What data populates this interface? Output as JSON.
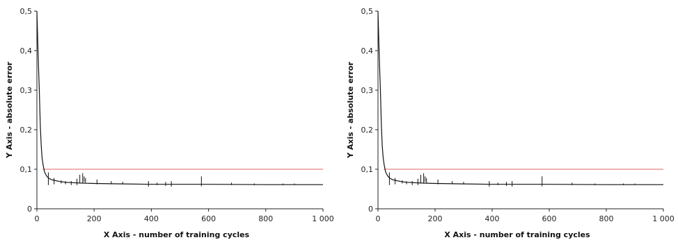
{
  "chart_data": [
    {
      "type": "line",
      "title": "",
      "xlabel": "X Axis - number of training cycles",
      "ylabel": "Y Axis - absolute error",
      "xlim": [
        0,
        1000
      ],
      "ylim": [
        0,
        0.5
      ],
      "x_ticks": [
        0,
        200,
        400,
        600,
        800,
        1000
      ],
      "x_tick_labels": [
        "0",
        "200",
        "400",
        "600",
        "800",
        "1 000"
      ],
      "y_ticks": [
        0,
        0.1,
        0.2,
        0.3,
        0.4,
        0.5
      ],
      "y_tick_labels": [
        "0",
        "0,1",
        "0,2",
        "0,3",
        "0,4",
        "0,5"
      ],
      "grid": false,
      "legend": "none",
      "series": [
        {
          "color": "#111111",
          "x": [
            0,
            2,
            4,
            6,
            8,
            10,
            12,
            15,
            18,
            22,
            26,
            30,
            35,
            40,
            50,
            60,
            80,
            100,
            150,
            200,
            300,
            400,
            600,
            800,
            1000
          ],
          "y": [
            0.5,
            0.45,
            0.4,
            0.35,
            0.31,
            0.26,
            0.21,
            0.16,
            0.13,
            0.11,
            0.095,
            0.088,
            0.082,
            0.078,
            0.074,
            0.072,
            0.069,
            0.067,
            0.065,
            0.064,
            0.063,
            0.062,
            0.062,
            0.061,
            0.061
          ]
        },
        {
          "color": "#e06666",
          "x": [
            20,
            1000
          ],
          "y": [
            0.1,
            0.1
          ]
        }
      ],
      "spikes": {
        "x": [
          40,
          60,
          85,
          100,
          120,
          140,
          150,
          160,
          165,
          170,
          210,
          260,
          300,
          390,
          420,
          450,
          470,
          575,
          680,
          760,
          860,
          900
        ],
        "y_low": [
          0.06,
          0.062,
          0.064,
          0.062,
          0.06,
          0.06,
          0.064,
          0.064,
          0.068,
          0.066,
          0.062,
          0.062,
          0.062,
          0.056,
          0.06,
          0.058,
          0.056,
          0.057,
          0.06,
          0.06,
          0.06,
          0.061
        ],
        "y_high": [
          0.092,
          0.078,
          0.072,
          0.07,
          0.07,
          0.076,
          0.086,
          0.09,
          0.082,
          0.078,
          0.074,
          0.07,
          0.068,
          0.07,
          0.066,
          0.068,
          0.07,
          0.082,
          0.066,
          0.064,
          0.064,
          0.064
        ]
      }
    },
    {
      "type": "line",
      "title": "",
      "xlabel": "X Axis - number of training cycles",
      "ylabel": "Y Axis - absolute error",
      "xlim": [
        0,
        1000
      ],
      "ylim": [
        0,
        0.5
      ],
      "x_ticks": [
        0,
        200,
        400,
        600,
        800,
        1000
      ],
      "x_tick_labels": [
        "0",
        "200",
        "400",
        "600",
        "800",
        "1 000"
      ],
      "y_ticks": [
        0,
        0.1,
        0.2,
        0.3,
        0.4,
        0.5
      ],
      "y_tick_labels": [
        "0",
        "0,1",
        "0,2",
        "0,3",
        "0,4",
        "0,5"
      ],
      "grid": false,
      "legend": "none",
      "series": [
        {
          "color": "#111111",
          "x": [
            0,
            2,
            4,
            6,
            8,
            10,
            12,
            15,
            18,
            22,
            26,
            30,
            35,
            40,
            50,
            60,
            80,
            100,
            150,
            200,
            300,
            400,
            600,
            800,
            1000
          ],
          "y": [
            0.5,
            0.45,
            0.4,
            0.35,
            0.31,
            0.26,
            0.21,
            0.16,
            0.13,
            0.11,
            0.095,
            0.088,
            0.082,
            0.078,
            0.074,
            0.072,
            0.069,
            0.067,
            0.065,
            0.064,
            0.063,
            0.062,
            0.062,
            0.061,
            0.061
          ]
        },
        {
          "color": "#e06666",
          "x": [
            20,
            1000
          ],
          "y": [
            0.1,
            0.1
          ]
        }
      ],
      "spikes": {
        "x": [
          40,
          60,
          85,
          100,
          120,
          140,
          150,
          160,
          165,
          170,
          210,
          260,
          300,
          390,
          420,
          450,
          470,
          575,
          680,
          760,
          860,
          900
        ],
        "y_low": [
          0.06,
          0.062,
          0.064,
          0.062,
          0.06,
          0.06,
          0.064,
          0.064,
          0.068,
          0.066,
          0.062,
          0.062,
          0.062,
          0.056,
          0.06,
          0.058,
          0.056,
          0.057,
          0.06,
          0.06,
          0.06,
          0.061
        ],
        "y_high": [
          0.092,
          0.078,
          0.072,
          0.07,
          0.07,
          0.076,
          0.086,
          0.09,
          0.082,
          0.078,
          0.074,
          0.07,
          0.068,
          0.07,
          0.066,
          0.068,
          0.07,
          0.082,
          0.066,
          0.064,
          0.064,
          0.064
        ]
      }
    }
  ]
}
